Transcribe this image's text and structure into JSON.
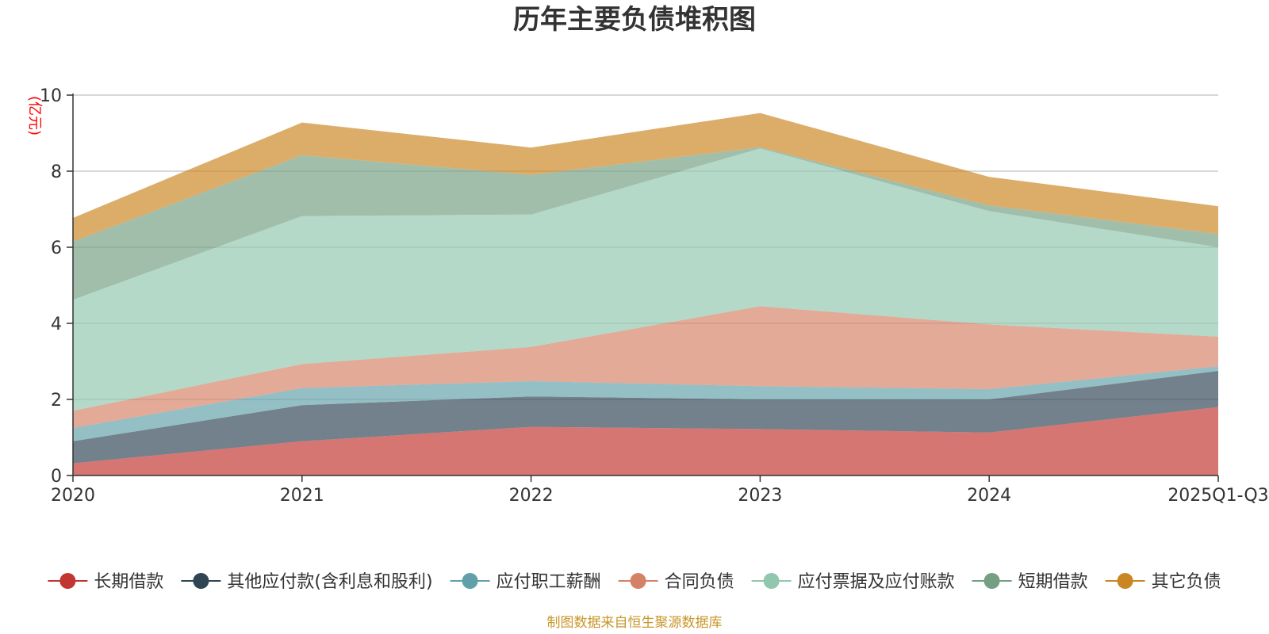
{
  "chart_data": {
    "type": "area",
    "stacked": true,
    "title": "历年主要负债堆积图",
    "ylabel": "(亿元)",
    "xlabel": "",
    "ylim": [
      0,
      10
    ],
    "yticks": [
      0,
      2,
      4,
      6,
      8,
      10
    ],
    "categories": [
      "2020",
      "2021",
      "2022",
      "2023",
      "2024",
      "2025Q1-Q3"
    ],
    "series": [
      {
        "name": "长期借款",
        "color": "#c23531",
        "values": [
          0.32,
          0.9,
          1.28,
          1.22,
          1.13,
          1.8
        ]
      },
      {
        "name": "其他应付款(含利息和股利)",
        "color": "#2f4554",
        "values": [
          0.58,
          0.95,
          0.8,
          0.78,
          0.87,
          0.95
        ]
      },
      {
        "name": "应付职工薪酬",
        "color": "#61a0a8",
        "values": [
          0.35,
          0.45,
          0.4,
          0.35,
          0.27,
          0.12
        ]
      },
      {
        "name": "合同负债",
        "color": "#d48265",
        "values": [
          0.45,
          0.63,
          0.9,
          2.1,
          1.7,
          0.78
        ]
      },
      {
        "name": "应付票据及应付账款",
        "color": "#91c7ae",
        "values": [
          2.92,
          3.89,
          3.48,
          4.15,
          2.98,
          2.35
        ]
      },
      {
        "name": "短期借款",
        "color": "#749f83",
        "values": [
          1.53,
          1.6,
          1.04,
          0.03,
          0.15,
          0.35
        ]
      },
      {
        "name": "其它负债",
        "color": "#ca8622",
        "values": [
          0.62,
          0.86,
          0.72,
          0.9,
          0.75,
          0.73
        ]
      }
    ],
    "legend_position": "bottom",
    "grid": true
  },
  "source_note": "制图数据来自恒生聚源数据库"
}
